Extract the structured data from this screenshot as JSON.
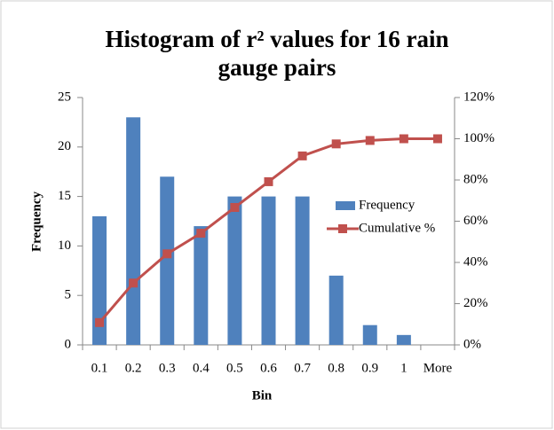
{
  "chart_data": {
    "type": "bar",
    "title": "Histogram of r² values for 16 rain gauge pairs",
    "x_label": "Bin",
    "y_label": "Frequency",
    "categories": [
      "0.1",
      "0.2",
      "0.3",
      "0.4",
      "0.5",
      "0.6",
      "0.7",
      "0.8",
      "0.9",
      "1",
      "More"
    ],
    "series": [
      {
        "name": "Frequency",
        "type": "bar",
        "color": "#4f81bd",
        "values": [
          13,
          23,
          17,
          12,
          15,
          15,
          15,
          7,
          2,
          1,
          0
        ]
      },
      {
        "name": "Cumulative %",
        "type": "line",
        "axis": "y2",
        "color": "#c0504d",
        "values": [
          10.83,
          30,
          44.17,
          54.17,
          66.67,
          79.17,
          91.67,
          97.5,
          99.17,
          100,
          100
        ]
      }
    ],
    "ylim": [
      0,
      25
    ],
    "yticks": [
      0,
      5,
      10,
      15,
      20,
      25
    ],
    "y2lim": [
      0,
      120
    ],
    "y2ticks": [
      {
        "value": 0,
        "label": "0%"
      },
      {
        "value": 20,
        "label": "20%"
      },
      {
        "value": 40,
        "label": "40%"
      },
      {
        "value": 60,
        "label": "60%"
      },
      {
        "value": 80,
        "label": "80%"
      },
      {
        "value": 100,
        "label": "100%"
      },
      {
        "value": 120,
        "label": "120%"
      }
    ],
    "grid": false,
    "legend": "right"
  }
}
